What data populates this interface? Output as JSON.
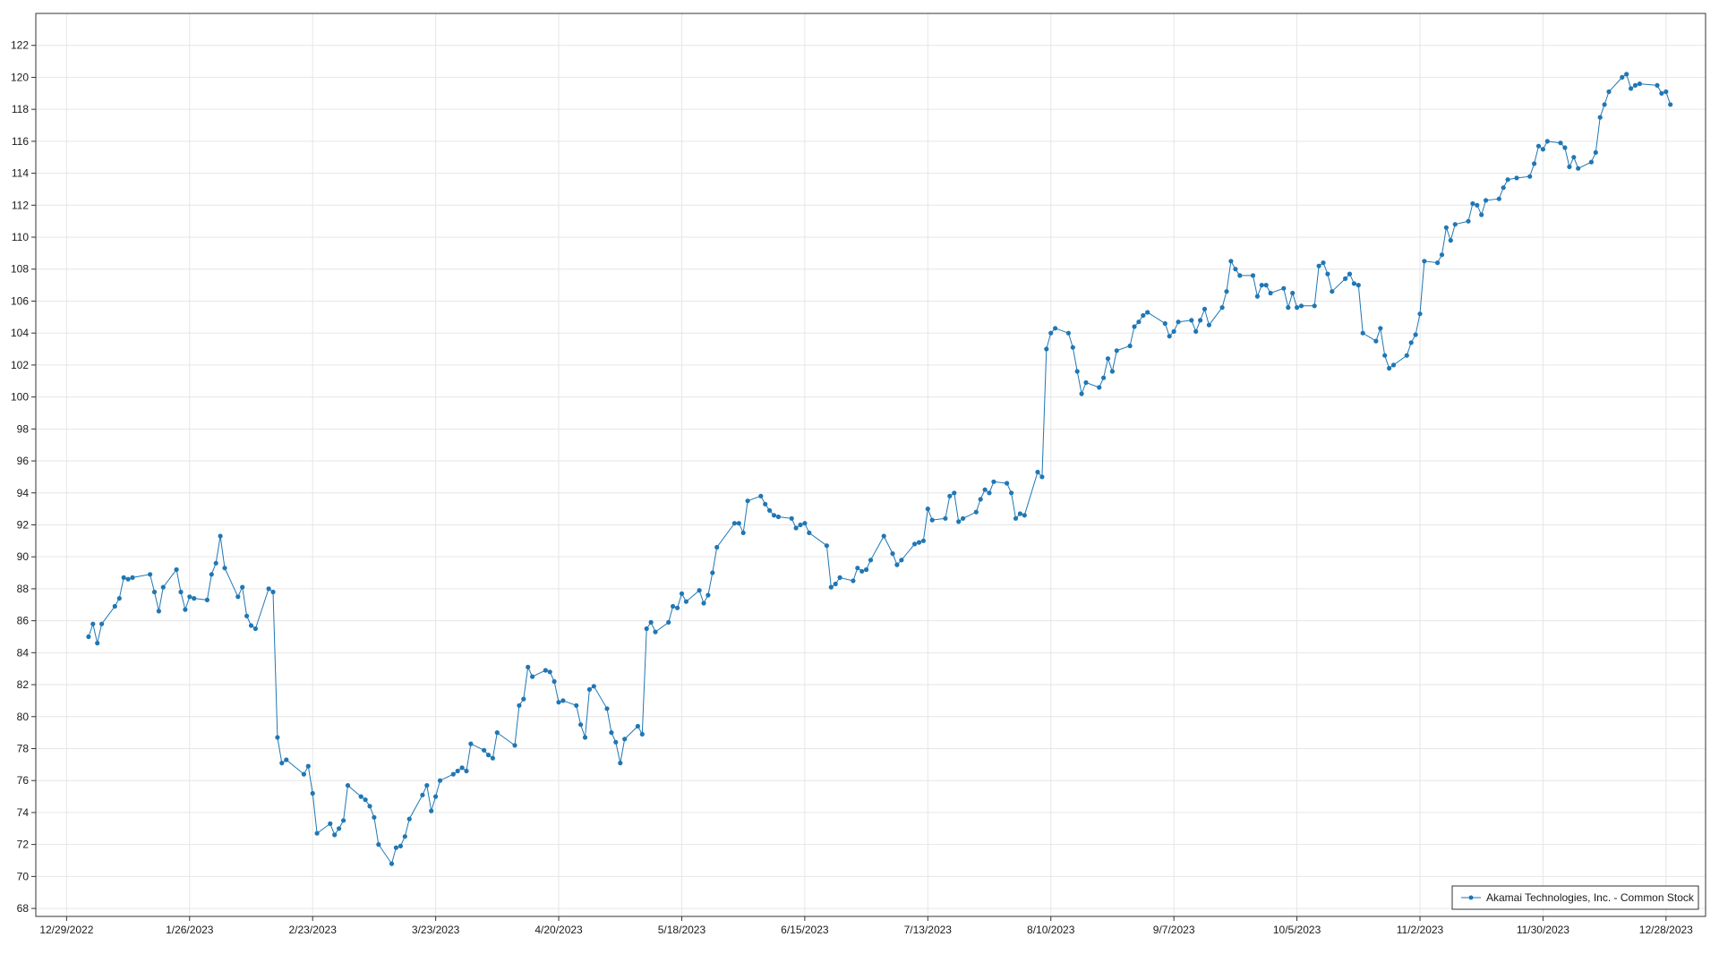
{
  "chart_data": {
    "type": "line",
    "title": "",
    "xlabel": "",
    "ylabel": "",
    "x_ticks": [
      "12/29/2022",
      "1/26/2023",
      "2/23/2023",
      "3/23/2023",
      "4/20/2023",
      "5/18/2023",
      "6/15/2023",
      "7/13/2023",
      "8/10/2023",
      "9/7/2023",
      "10/5/2023",
      "11/2/2023",
      "11/30/2023",
      "12/28/2023"
    ],
    "y_ticks": [
      68,
      70,
      72,
      74,
      76,
      78,
      80,
      82,
      84,
      86,
      88,
      90,
      92,
      94,
      96,
      98,
      100,
      102,
      104,
      106,
      108,
      110,
      112,
      114,
      116,
      118,
      120,
      122
    ],
    "xlim": [
      "2022-12-22",
      "2024-01-06"
    ],
    "ylim": [
      67.5,
      124.0
    ],
    "grid": true,
    "legend_position": "bottom-right",
    "colors": {
      "series": "#1f77b4",
      "grid": "#e6e6e6",
      "axis": "#333333"
    },
    "series": [
      {
        "name": "Akamai Technologies, Inc. - Common Stock",
        "x": [
          "2023-01-03",
          "2023-01-04",
          "2023-01-05",
          "2023-01-06",
          "2023-01-09",
          "2023-01-10",
          "2023-01-11",
          "2023-01-12",
          "2023-01-13",
          "2023-01-17",
          "2023-01-18",
          "2023-01-19",
          "2023-01-20",
          "2023-01-23",
          "2023-01-24",
          "2023-01-25",
          "2023-01-26",
          "2023-01-27",
          "2023-01-30",
          "2023-01-31",
          "2023-02-01",
          "2023-02-02",
          "2023-02-03",
          "2023-02-06",
          "2023-02-07",
          "2023-02-08",
          "2023-02-09",
          "2023-02-10",
          "2023-02-13",
          "2023-02-14",
          "2023-02-15",
          "2023-02-16",
          "2023-02-17",
          "2023-02-21",
          "2023-02-22",
          "2023-02-23",
          "2023-02-24",
          "2023-02-27",
          "2023-02-28",
          "2023-03-01",
          "2023-03-02",
          "2023-03-03",
          "2023-03-06",
          "2023-03-07",
          "2023-03-08",
          "2023-03-09",
          "2023-03-10",
          "2023-03-13",
          "2023-03-14",
          "2023-03-15",
          "2023-03-16",
          "2023-03-17",
          "2023-03-20",
          "2023-03-21",
          "2023-03-22",
          "2023-03-23",
          "2023-03-24",
          "2023-03-27",
          "2023-03-28",
          "2023-03-29",
          "2023-03-30",
          "2023-03-31",
          "2023-04-03",
          "2023-04-04",
          "2023-04-05",
          "2023-04-06",
          "2023-04-10",
          "2023-04-11",
          "2023-04-12",
          "2023-04-13",
          "2023-04-14",
          "2023-04-17",
          "2023-04-18",
          "2023-04-19",
          "2023-04-20",
          "2023-04-21",
          "2023-04-24",
          "2023-04-25",
          "2023-04-26",
          "2023-04-27",
          "2023-04-28",
          "2023-05-01",
          "2023-05-02",
          "2023-05-03",
          "2023-05-04",
          "2023-05-05",
          "2023-05-08",
          "2023-05-09",
          "2023-05-10",
          "2023-05-11",
          "2023-05-12",
          "2023-05-15",
          "2023-05-16",
          "2023-05-17",
          "2023-05-18",
          "2023-05-19",
          "2023-05-22",
          "2023-05-23",
          "2023-05-24",
          "2023-05-25",
          "2023-05-26",
          "2023-05-30",
          "2023-05-31",
          "2023-06-01",
          "2023-06-02",
          "2023-06-05",
          "2023-06-06",
          "2023-06-07",
          "2023-06-08",
          "2023-06-09",
          "2023-06-12",
          "2023-06-13",
          "2023-06-14",
          "2023-06-15",
          "2023-06-16",
          "2023-06-20",
          "2023-06-21",
          "2023-06-22",
          "2023-06-23",
          "2023-06-26",
          "2023-06-27",
          "2023-06-28",
          "2023-06-29",
          "2023-06-30",
          "2023-07-03",
          "2023-07-05",
          "2023-07-06",
          "2023-07-07",
          "2023-07-10",
          "2023-07-11",
          "2023-07-12",
          "2023-07-13",
          "2023-07-14",
          "2023-07-17",
          "2023-07-18",
          "2023-07-19",
          "2023-07-20",
          "2023-07-21",
          "2023-07-24",
          "2023-07-25",
          "2023-07-26",
          "2023-07-27",
          "2023-07-28",
          "2023-07-31",
          "2023-08-01",
          "2023-08-02",
          "2023-08-03",
          "2023-08-04",
          "2023-08-07",
          "2023-08-08",
          "2023-08-09",
          "2023-08-10",
          "2023-08-11",
          "2023-08-14",
          "2023-08-15",
          "2023-08-16",
          "2023-08-17",
          "2023-08-18",
          "2023-08-21",
          "2023-08-22",
          "2023-08-23",
          "2023-08-24",
          "2023-08-25",
          "2023-08-28",
          "2023-08-29",
          "2023-08-30",
          "2023-08-31",
          "2023-09-01",
          "2023-09-05",
          "2023-09-06",
          "2023-09-07",
          "2023-09-08",
          "2023-09-11",
          "2023-09-12",
          "2023-09-13",
          "2023-09-14",
          "2023-09-15",
          "2023-09-18",
          "2023-09-19",
          "2023-09-20",
          "2023-09-21",
          "2023-09-22",
          "2023-09-25",
          "2023-09-26",
          "2023-09-27",
          "2023-09-28",
          "2023-09-29",
          "2023-10-02",
          "2023-10-03",
          "2023-10-04",
          "2023-10-05",
          "2023-10-06",
          "2023-10-09",
          "2023-10-10",
          "2023-10-11",
          "2023-10-12",
          "2023-10-13",
          "2023-10-16",
          "2023-10-17",
          "2023-10-18",
          "2023-10-19",
          "2023-10-20",
          "2023-10-23",
          "2023-10-24",
          "2023-10-25",
          "2023-10-26",
          "2023-10-27",
          "2023-10-30",
          "2023-10-31",
          "2023-11-01",
          "2023-11-02",
          "2023-11-03",
          "2023-11-06",
          "2023-11-07",
          "2023-11-08",
          "2023-11-09",
          "2023-11-10",
          "2023-11-13",
          "2023-11-14",
          "2023-11-15",
          "2023-11-16",
          "2023-11-17",
          "2023-11-20",
          "2023-11-21",
          "2023-11-22",
          "2023-11-24",
          "2023-11-27",
          "2023-11-28",
          "2023-11-29",
          "2023-11-30",
          "2023-12-01",
          "2023-12-04",
          "2023-12-05",
          "2023-12-06",
          "2023-12-07",
          "2023-12-08",
          "2023-12-11",
          "2023-12-12",
          "2023-12-13",
          "2023-12-14",
          "2023-12-15",
          "2023-12-18",
          "2023-12-19",
          "2023-12-20",
          "2023-12-21",
          "2023-12-22",
          "2023-12-26",
          "2023-12-27",
          "2023-12-28",
          "2023-12-29"
        ],
        "y": [
          85.0,
          85.8,
          84.6,
          85.8,
          86.9,
          87.4,
          88.7,
          88.6,
          88.7,
          88.9,
          87.8,
          86.6,
          88.1,
          89.2,
          87.8,
          86.7,
          87.5,
          87.4,
          87.3,
          88.9,
          89.6,
          91.3,
          89.3,
          87.5,
          88.1,
          86.3,
          85.7,
          85.5,
          88.0,
          87.8,
          78.7,
          77.1,
          77.3,
          76.4,
          76.9,
          75.2,
          72.7,
          73.3,
          72.6,
          73.0,
          73.5,
          75.7,
          75.0,
          74.8,
          74.4,
          73.7,
          72.0,
          70.8,
          71.8,
          71.9,
          72.5,
          73.6,
          75.1,
          75.7,
          74.1,
          75.0,
          76.0,
          76.4,
          76.6,
          76.8,
          76.6,
          78.3,
          77.9,
          77.6,
          77.4,
          79.0,
          78.2,
          80.7,
          81.1,
          83.1,
          82.5,
          82.9,
          82.8,
          82.2,
          80.9,
          81.0,
          80.7,
          79.5,
          78.7,
          81.7,
          81.9,
          80.5,
          79.0,
          78.4,
          77.1,
          78.6,
          79.4,
          78.9,
          85.5,
          85.9,
          85.3,
          85.9,
          86.9,
          86.8,
          87.7,
          87.2,
          87.9,
          87.1,
          87.6,
          89.0,
          90.6,
          92.1,
          92.1,
          91.5,
          93.5,
          93.8,
          93.3,
          92.9,
          92.6,
          92.5,
          92.4,
          91.8,
          92.0,
          92.1,
          91.5,
          90.7,
          88.1,
          88.3,
          88.7,
          88.5,
          89.3,
          89.1,
          89.2,
          89.8,
          91.3,
          90.2,
          89.5,
          89.8,
          90.8,
          90.9,
          91.0,
          93.0,
          92.3,
          92.4,
          93.8,
          94.0,
          92.2,
          92.4,
          92.8,
          93.6,
          94.2,
          94.0,
          94.7,
          94.6,
          94.0,
          92.4,
          92.7,
          92.6,
          95.3,
          95.0,
          103.0,
          104.0,
          104.3,
          104.0,
          103.1,
          101.6,
          100.2,
          100.9,
          100.6,
          101.2,
          102.4,
          101.6,
          102.9,
          103.2,
          104.4,
          104.7,
          105.1,
          105.3,
          104.6,
          103.8,
          104.1,
          104.7,
          104.8,
          104.1,
          104.8,
          105.5,
          104.5,
          105.6,
          106.6,
          108.5,
          108.0,
          107.6,
          107.6,
          106.3,
          107.0,
          107.0,
          106.5,
          106.8,
          105.6,
          106.5,
          105.6,
          105.7,
          105.7,
          108.2,
          108.4,
          107.7,
          106.6,
          107.4,
          107.7,
          107.1,
          107.0,
          104.0,
          103.5,
          104.3,
          102.6,
          101.8,
          102.0,
          102.6,
          103.4,
          103.9,
          105.2,
          108.5,
          108.4,
          108.9,
          110.6,
          109.8,
          110.8,
          111.0,
          112.1,
          112.0,
          111.4,
          112.3,
          112.4,
          113.1,
          113.6,
          113.7,
          113.8,
          114.6,
          115.7,
          115.5,
          116.0,
          115.9,
          115.6,
          114.4,
          115.0,
          114.3,
          114.7,
          115.3,
          117.5,
          118.3,
          119.1,
          120.0,
          120.2,
          119.3,
          119.5,
          119.6,
          119.5,
          119.0,
          119.1,
          118.3
        ]
      }
    ]
  }
}
